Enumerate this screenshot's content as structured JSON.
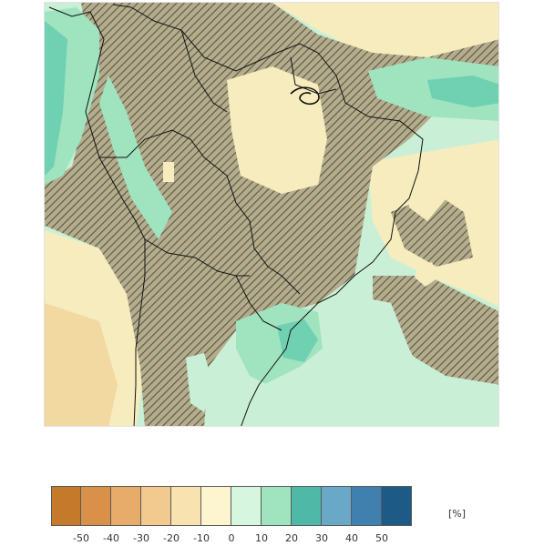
{
  "map": {
    "colors": {
      "ocean_base": "#c9f0d6",
      "light_green": "#c9f0d6",
      "mid_green": "#9fe3bf",
      "teal": "#6fd0b2",
      "tan": "#f7ecbe",
      "orange_tan": "#f2d9a2",
      "hatch_fill": "#b8ad8a",
      "hatch_line": "#4f5a4a",
      "coast": "#111111"
    }
  },
  "colorbar": {
    "colors": [
      "#c47a2a",
      "#d9914a",
      "#e8ac6a",
      "#f2c98e",
      "#f8e3b0",
      "#fdf4d0",
      "#d6f6e0",
      "#9fe3bf",
      "#4fb8a6",
      "#6aa8c8",
      "#3f80ae",
      "#1e5a86"
    ],
    "ticks": [
      "-50",
      "-40",
      "-30",
      "-20",
      "-10",
      "0",
      "10",
      "20",
      "30",
      "40",
      "50"
    ],
    "unit": "[%]"
  }
}
